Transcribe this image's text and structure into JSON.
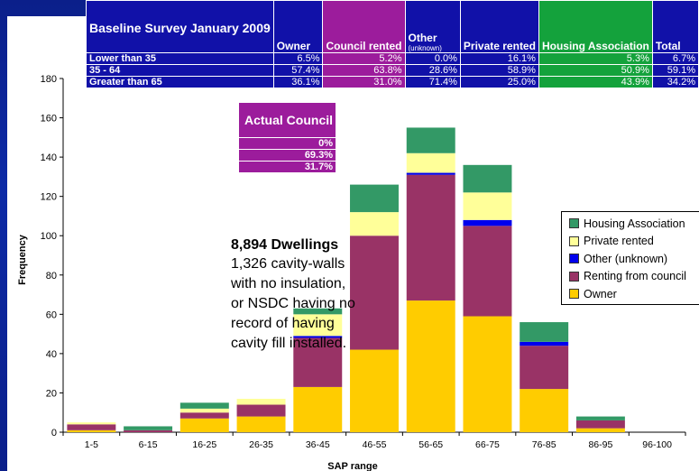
{
  "survey_table": {
    "title": "Baseline Survey January 2009",
    "columns": [
      {
        "label": "Owner",
        "sub": ""
      },
      {
        "label": "Council rented",
        "sub": ""
      },
      {
        "label": "Other",
        "sub": "(unknown)"
      },
      {
        "label": "Private rented",
        "sub": ""
      },
      {
        "label": "Housing Association",
        "sub": ""
      },
      {
        "label": "Total",
        "sub": ""
      }
    ],
    "rows": [
      {
        "label": "Lower than 35",
        "cells": [
          "6.5%",
          "5.2%",
          "0.0%",
          "16.1%",
          "5.3%",
          "6.7%"
        ]
      },
      {
        "label": "35 - 64",
        "cells": [
          "57.4%",
          "63.8%",
          "28.6%",
          "58.9%",
          "50.9%",
          "59.1%"
        ]
      },
      {
        "label": "Greater than 65",
        "cells": [
          "36.1%",
          "31.0%",
          "71.4%",
          "25.0%",
          "43.9%",
          "34.2%"
        ]
      }
    ]
  },
  "actual_council": {
    "title": "Actual Council",
    "values": [
      "0%",
      "69.3%",
      "31.7%"
    ]
  },
  "dwellings": {
    "title": "8,894  Dwellings",
    "body": "1,326 cavity-walls with no insulation, or NSDC having no record of having cavity fill installed."
  },
  "colors": {
    "background": "#0b1f8a",
    "owner": "#ffcc00",
    "council": "#993366",
    "other": "#0000ee",
    "private": "#ffff99",
    "housing_association": "#339966"
  },
  "chart_data": {
    "type": "bar",
    "stacked": true,
    "xlabel": "SAP range",
    "ylabel": "Frequency",
    "ylim": [
      0,
      180
    ],
    "yticks": [
      0,
      20,
      40,
      60,
      80,
      100,
      120,
      140,
      160,
      180
    ],
    "categories": [
      "1-5",
      "6-15",
      "16-25",
      "26-35",
      "36-45",
      "46-55",
      "56-65",
      "66-75",
      "76-85",
      "86-95",
      "96-100"
    ],
    "series": [
      {
        "name": "Owner",
        "color": "#ffcc00",
        "values": [
          1,
          0,
          7,
          8,
          23,
          42,
          67,
          59,
          22,
          2,
          0
        ]
      },
      {
        "name": "Renting from council",
        "color": "#993366",
        "values": [
          3,
          1,
          3,
          6,
          25,
          58,
          64,
          46,
          22,
          4,
          0
        ]
      },
      {
        "name": "Other (unknown)",
        "color": "#0000ee",
        "values": [
          0,
          0,
          0,
          0,
          1,
          0,
          1,
          3,
          2,
          0,
          0
        ]
      },
      {
        "name": "Private rented",
        "color": "#ffff99",
        "values": [
          1,
          0,
          2,
          3,
          11,
          12,
          10,
          14,
          0,
          0,
          0
        ]
      },
      {
        "name": "Housing Association",
        "color": "#339966",
        "values": [
          0,
          2,
          3,
          0,
          3,
          14,
          13,
          14,
          10,
          2,
          0
        ]
      }
    ],
    "legend_order": [
      "Housing Association",
      "Private rented",
      "Other (unknown)",
      "Renting from council",
      "Owner"
    ],
    "legend_position": "right",
    "grid": false
  }
}
